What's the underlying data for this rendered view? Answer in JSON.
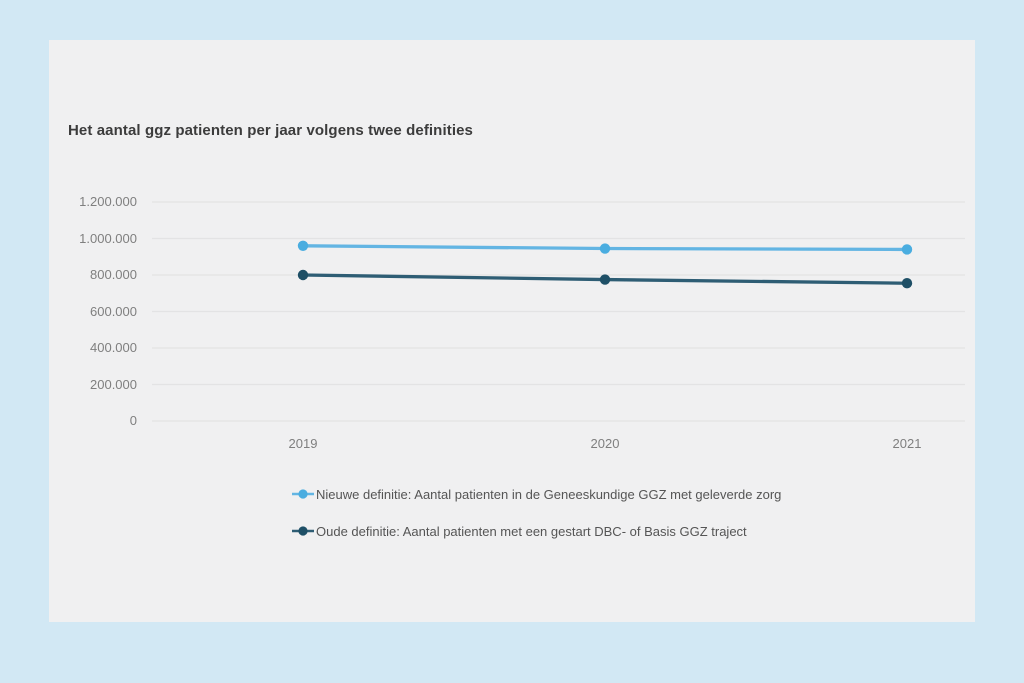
{
  "window": {
    "background_color": "#d2e8f4"
  },
  "card": {
    "background_color": "#f0f0f1"
  },
  "chart_data": {
    "type": "line",
    "title": "Het aantal ggz patienten per jaar volgens twee definities",
    "categories": [
      "2019",
      "2020",
      "2021"
    ],
    "series": [
      {
        "name": "Nieuwe definitie: Aantal patienten in de Geneeskundige GGZ met geleverde zorg",
        "values": [
          960000,
          945000,
          940000
        ],
        "line_color": "#63b5e3",
        "marker_color": "#4aade0"
      },
      {
        "name": "Oude definitie: Aantal patienten met een gestart DBC- of Basis GGZ traject",
        "values": [
          800000,
          775000,
          755000
        ],
        "line_color": "#2e5d74",
        "marker_color": "#1e4f66"
      }
    ],
    "xlabel": "",
    "ylabel": "",
    "ylim": [
      0,
      1200000
    ],
    "y_ticks": [
      {
        "value": 1200000,
        "label": "1.200.000"
      },
      {
        "value": 1000000,
        "label": "1.000.000"
      },
      {
        "value": 800000,
        "label": "800.000"
      },
      {
        "value": 600000,
        "label": "600.000"
      },
      {
        "value": 400000,
        "label": "400.000"
      },
      {
        "value": 200000,
        "label": "200.000"
      },
      {
        "value": 0,
        "label": "0"
      }
    ],
    "grid": true,
    "gridline_color": "#e3e3e4",
    "legend_position": "bottom",
    "title_color": "#3c3c3c",
    "axis_label_color": "#7f7f7f",
    "legend_text_color": "#555555"
  }
}
